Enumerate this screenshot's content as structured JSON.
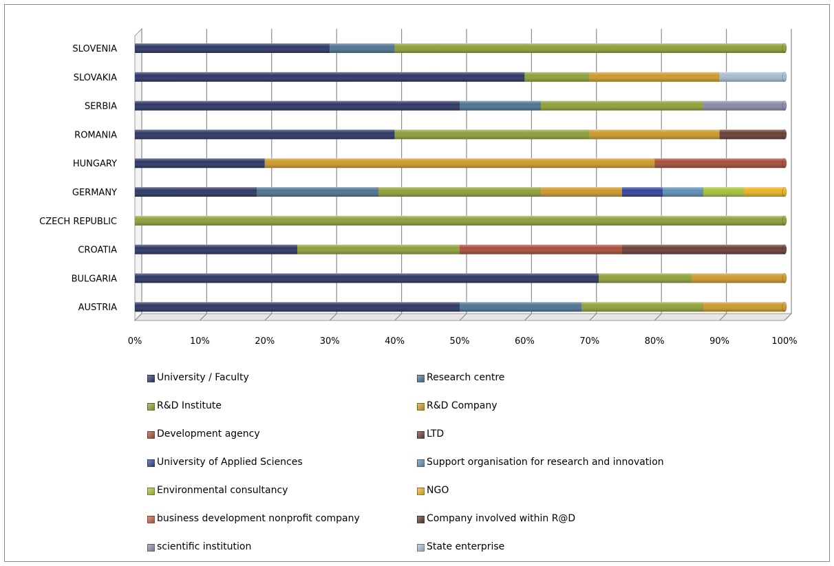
{
  "chart_data": {
    "type": "bar",
    "orientation": "horizontal",
    "stacked": "percent",
    "title": "",
    "xlabel": "",
    "ylabel": "",
    "xlim": [
      0,
      100
    ],
    "x_ticks": [
      "0%",
      "10%",
      "20%",
      "30%",
      "40%",
      "50%",
      "60%",
      "70%",
      "80%",
      "90%",
      "100%"
    ],
    "grid": true,
    "legend_position": "bottom",
    "categories": [
      "SLOVENIA",
      "SLOVAKIA",
      "SERBIA",
      "ROMANIA",
      "HUNGARY",
      "GERMANY",
      "CZECH REPUBLIC",
      "CROATIA",
      "BULGARIA",
      "AUSTRIA"
    ],
    "series": [
      {
        "name": "University / Faculty",
        "color": "#2e3866",
        "values": [
          30,
          60,
          50,
          40,
          20,
          18.75,
          0,
          25,
          71.4,
          50
        ]
      },
      {
        "name": "Research centre",
        "color": "#4e7591",
        "values": [
          10,
          0,
          12.5,
          0,
          0,
          18.75,
          0,
          0,
          0,
          18.75
        ]
      },
      {
        "name": "R&D Institute",
        "color": "#8ea13a",
        "values": [
          60,
          10,
          25,
          30,
          0,
          25,
          100,
          25,
          14.3,
          18.75
        ]
      },
      {
        "name": "R&D Company",
        "color": "#cc9a2c",
        "values": [
          0,
          20,
          0,
          20,
          60,
          12.5,
          0,
          0,
          14.3,
          12.5
        ]
      },
      {
        "name": "Development agency",
        "color": "#a54f3a",
        "values": [
          0,
          0,
          0,
          0,
          20,
          0,
          0,
          25,
          0,
          0
        ]
      },
      {
        "name": "LTD",
        "color": "#6a4038",
        "values": [
          0,
          0,
          0,
          10,
          0,
          0,
          0,
          25,
          0,
          0
        ]
      },
      {
        "name": "University of Applied Sciences",
        "color": "#35449a",
        "values": [
          0,
          0,
          0,
          0,
          0,
          6.25,
          0,
          0,
          0,
          0
        ]
      },
      {
        "name": "Support organisation for research and innovation",
        "color": "#5f8eb4",
        "values": [
          0,
          0,
          0,
          0,
          0,
          6.25,
          0,
          0,
          0,
          0
        ]
      },
      {
        "name": "Environmental consultancy",
        "color": "#a6c23a",
        "values": [
          0,
          0,
          0,
          0,
          0,
          6.25,
          0,
          0,
          0,
          0
        ]
      },
      {
        "name": "NGO",
        "color": "#e8b224",
        "values": [
          0,
          0,
          0,
          0,
          0,
          6.25,
          0,
          0,
          0,
          0
        ]
      },
      {
        "name": "business development nonprofit company",
        "color": "#c26040",
        "values": [
          0,
          0,
          0,
          0,
          0,
          0,
          0,
          0,
          0,
          0
        ]
      },
      {
        "name": "Company involved within R@D",
        "color": "#5a3a30",
        "values": [
          0,
          0,
          0,
          0,
          0,
          0,
          0,
          0,
          0,
          0
        ]
      },
      {
        "name": "scientific institution",
        "color": "#8a8aa8",
        "values": [
          0,
          0,
          12.5,
          0,
          0,
          0,
          0,
          0,
          0,
          0
        ]
      },
      {
        "name": "State enterprise",
        "color": "#a9bccc",
        "values": [
          0,
          10,
          0,
          0,
          0,
          0,
          0,
          0,
          0,
          0
        ]
      }
    ]
  }
}
